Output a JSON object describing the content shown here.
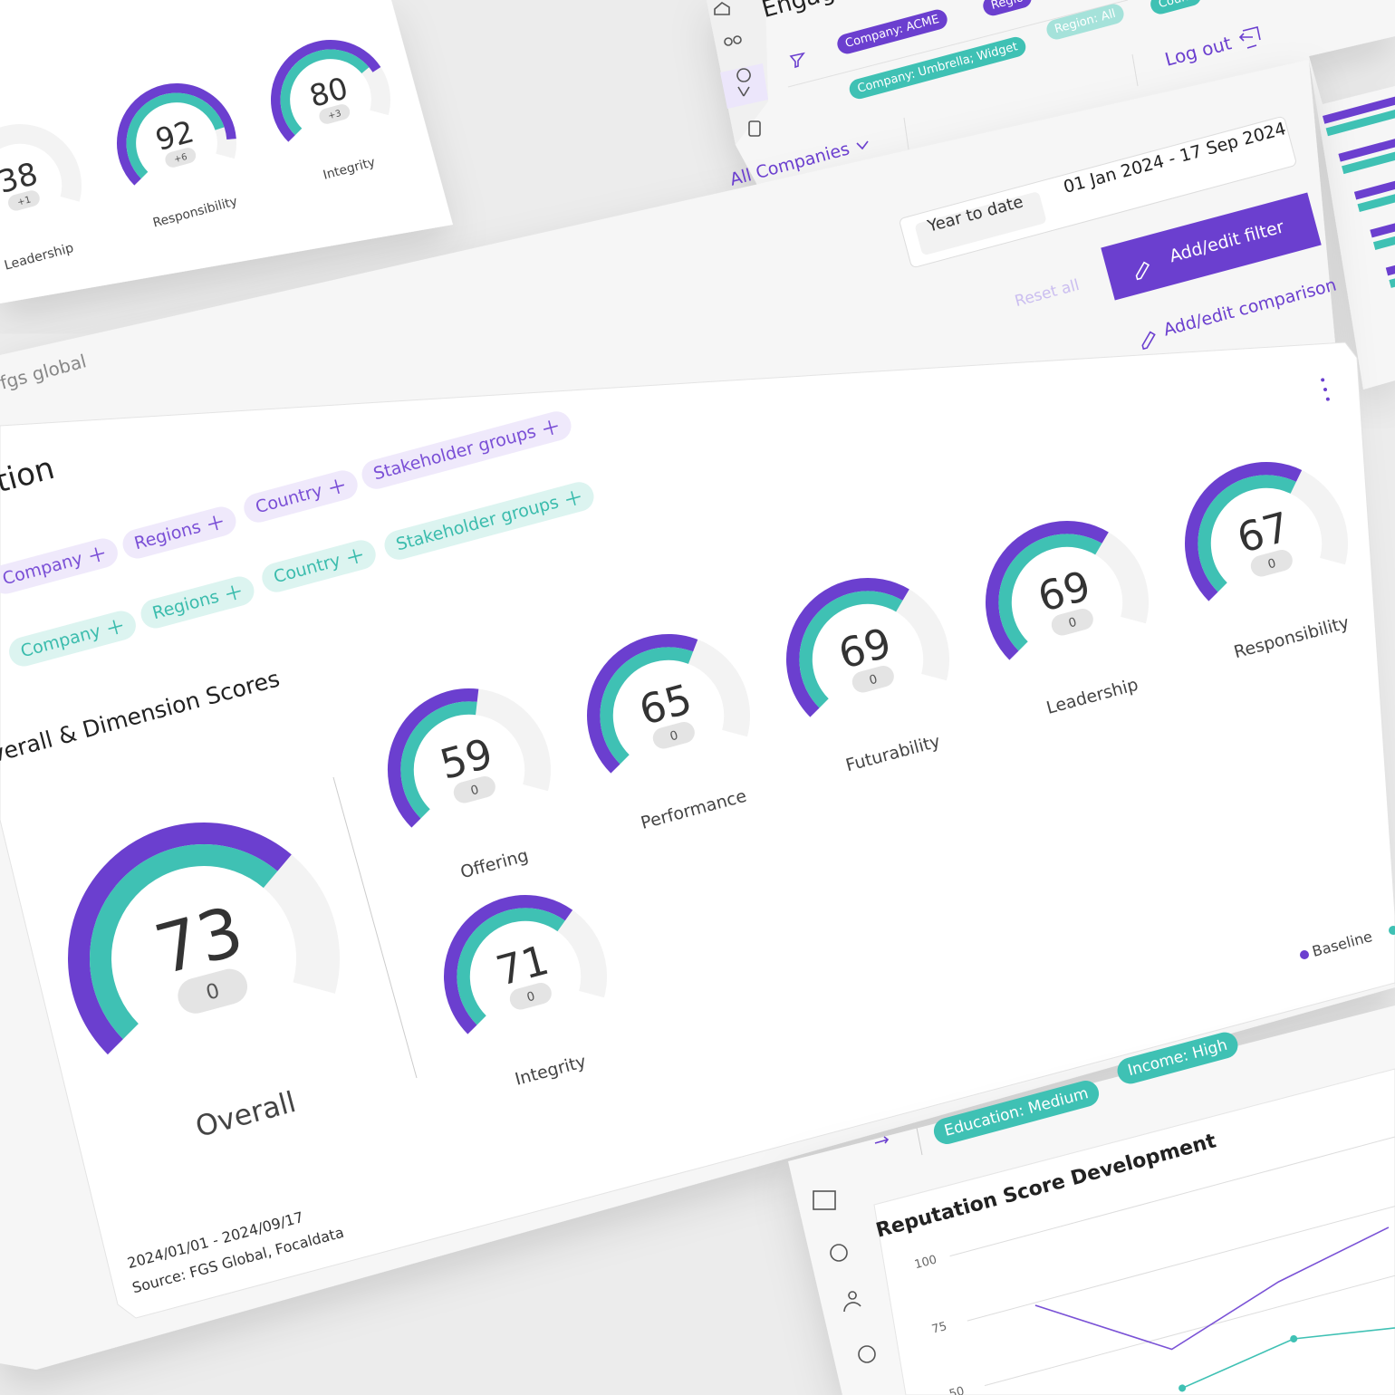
{
  "background_card": {
    "gauges": [
      {
        "label": "Leadership",
        "value": 38,
        "change": 1,
        "change_label": "+1"
      },
      {
        "label": "Responsibility",
        "value": 92,
        "change": 6,
        "change_label": "+6"
      },
      {
        "label": "Integrity",
        "value": 80,
        "change": 3,
        "change_label": "+3"
      }
    ]
  },
  "header": {
    "title": "Engag",
    "filter_chips": [
      "Company: ACME",
      "Regio",
      "Region: All",
      "Count",
      "Company: Umbrella; Widget"
    ],
    "logout": "Log out",
    "company_select": "All Companies",
    "period": "Year to date",
    "date_range": "01 Jan 2024 - 17 Sep 2024",
    "add_filter": "Add/edit filter",
    "reset": "Reset all",
    "add_comparison": "Add/edit comparison"
  },
  "main": {
    "logo": "fgs global",
    "title": "tion",
    "baseline_chips": [
      "Company",
      "Regions",
      "Country",
      "Stakeholder groups"
    ],
    "comparison_chips": [
      "Company",
      "Regions",
      "Country",
      "Stakeholder groups"
    ],
    "section_title": "Overall & Dimension Scores",
    "overall": {
      "label": "Overall",
      "value": 73,
      "change": 0
    },
    "dimensions": [
      {
        "label": "Offering",
        "value": 59,
        "change": 0
      },
      {
        "label": "Performance",
        "value": 65,
        "change": 0
      },
      {
        "label": "Futurability",
        "value": 69,
        "change": 0
      },
      {
        "label": "Leadership",
        "value": 69,
        "change": 0
      },
      {
        "label": "Responsibility",
        "value": 67,
        "change": 0
      },
      {
        "label": "Integrity",
        "value": 71,
        "change": 0
      }
    ],
    "legend": [
      "Baseline"
    ],
    "period": "2024/01/01 - 2024/09/17",
    "source": "Source: FGS Global, Focaldata"
  },
  "lower_panel": {
    "chips": [
      "Education: Medium",
      "Income: High"
    ],
    "reputation_chart": {
      "type": "line",
      "title": "Reputation Score Development",
      "ylim": [
        25,
        100
      ],
      "yticks": [
        100,
        75,
        50
      ],
      "series": [
        {
          "color": "#7a52d6",
          "values": [
            74,
            45,
            59,
            68
          ]
        },
        {
          "color": "#3fc1b4",
          "values": [
            null,
            30,
            37,
            30
          ]
        }
      ]
    }
  }
}
